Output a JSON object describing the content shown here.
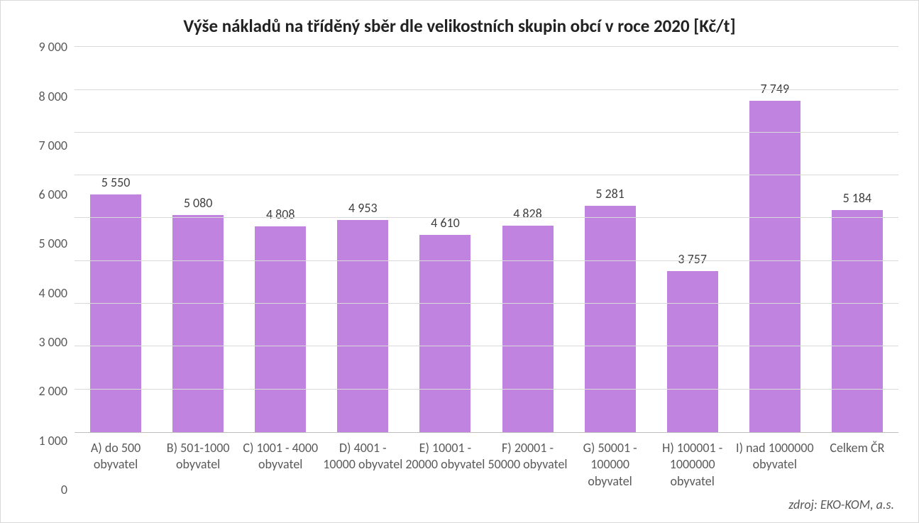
{
  "chart": {
    "type": "bar",
    "title": "Výše nákladů na tříděný sběr dle velikostních skupin obcí v roce 2020 [Kč/t]",
    "title_fontsize": 25,
    "title_fontweight": "bold",
    "title_color": "#222222",
    "background_color": "#ffffff",
    "border_color": "#d9d9d9",
    "font_family": "Calibri",
    "categories": [
      "A) do 500 obyvatel",
      "B) 501-1000 obyvatel",
      "C) 1001 - 4000 obyvatel",
      "D) 4001 - 10000 obyvatel",
      "E) 10001 - 20000 obyvatel",
      "F) 20001 - 50000 obyvatel",
      "G) 50001 - 100000 obyvatel",
      "H) 100001 - 1000000 obyvatel",
      "I) nad 1000000 obyvatel",
      "Celkem ČR"
    ],
    "values": [
      5550,
      5080,
      4808,
      4953,
      4610,
      4828,
      5281,
      3757,
      7749,
      5184
    ],
    "value_labels": [
      "5 550",
      "5 080",
      "4 808",
      "4 953",
      "4 610",
      "4 828",
      "5 281",
      "3 757",
      "7 749",
      "5 184"
    ],
    "bar_color": "#c084e0",
    "bar_width": 0.62,
    "ylim": [
      0,
      9000
    ],
    "ytick_step": 1000,
    "yticks": [
      "0",
      "1 000",
      "2 000",
      "3 000",
      "4 000",
      "5 000",
      "6 000",
      "7 000",
      "8 000",
      "9 000"
    ],
    "grid_color": "#d9d9d9",
    "axis_line_color": "#bfbfbf",
    "axis_label_fontsize": 18,
    "axis_label_color": "#595959",
    "value_label_fontsize": 18,
    "value_label_color": "#404040",
    "source": "zdroj: EKO-KOM, a.s.",
    "source_fontsize": 18,
    "source_color": "#595959",
    "source_fontstyle": "italic"
  }
}
